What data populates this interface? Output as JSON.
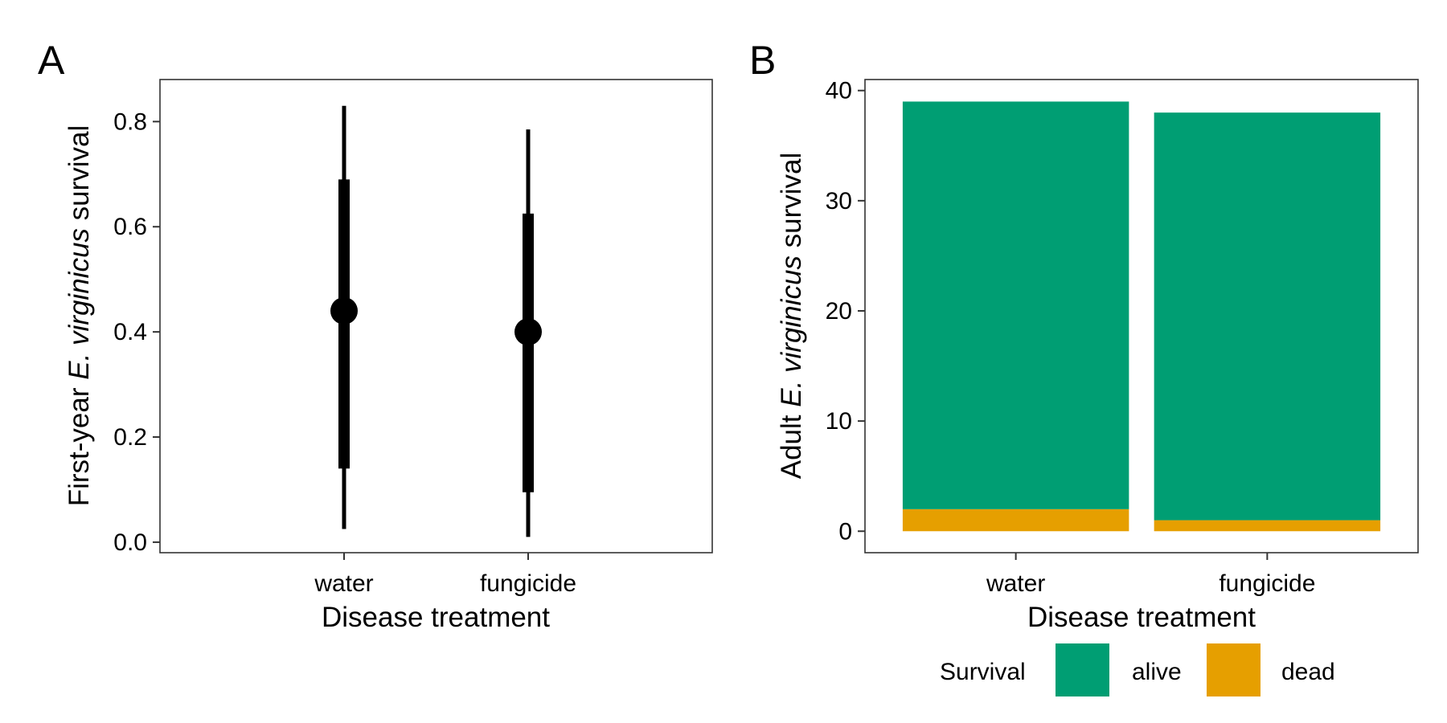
{
  "chart_data": [
    {
      "panel": "A",
      "type": "scatter",
      "categories": [
        "water",
        "fungicide"
      ],
      "estimates": [
        0.44,
        0.4
      ],
      "inner_interval": [
        [
          0.14,
          0.69
        ],
        [
          0.095,
          0.625
        ]
      ],
      "outer_interval": [
        [
          0.025,
          0.83
        ],
        [
          0.01,
          0.785
        ]
      ],
      "xlabel": "Disease treatment",
      "ylabel": {
        "prefix": "First-year ",
        "species": "E. virginicus",
        "suffix": " survival"
      },
      "ylim": [
        -0.02,
        0.88
      ],
      "yticks": [
        "0.0",
        "0.2",
        "0.4",
        "0.6",
        "0.8"
      ],
      "grid": false,
      "color": "#000000"
    },
    {
      "panel": "B",
      "type": "bar",
      "stacked": true,
      "categories": [
        "water",
        "fungicide"
      ],
      "series": [
        {
          "name": "alive",
          "values": [
            37,
            37
          ],
          "color": "#009E73"
        },
        {
          "name": "dead",
          "values": [
            2,
            1
          ],
          "color": "#E69F00"
        }
      ],
      "xlabel": "Disease treatment",
      "ylabel": {
        "prefix": "Adult ",
        "species": "E. virginicus",
        "suffix": " survival"
      },
      "ylim": [
        -1.95,
        41
      ],
      "yticks": [
        "0",
        "10",
        "20",
        "30",
        "40"
      ],
      "grid": false,
      "legend": {
        "title": "Survival",
        "placement": "bottom"
      }
    }
  ]
}
